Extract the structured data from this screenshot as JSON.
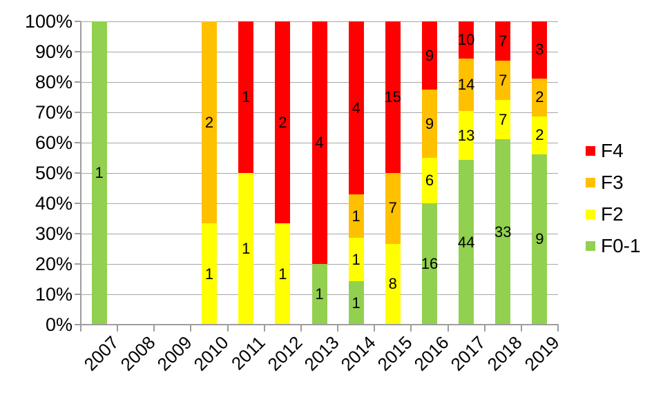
{
  "chart_data": {
    "type": "bar",
    "subtype": "stacked-100-percent",
    "title": "",
    "xlabel": "",
    "ylabel": "",
    "categories": [
      "2007",
      "2008",
      "2009",
      "2010",
      "2011",
      "2012",
      "2013",
      "2014",
      "2015",
      "2016",
      "2017",
      "2018",
      "2019"
    ],
    "series": [
      {
        "name": "F0-1",
        "color": "#92D050",
        "values": [
          1,
          0,
          0,
          0,
          0,
          0,
          1,
          1,
          0,
          16,
          44,
          33,
          9
        ]
      },
      {
        "name": "F2",
        "color": "#FFFF00",
        "values": [
          0,
          0,
          0,
          1,
          1,
          1,
          0,
          1,
          8,
          6,
          13,
          7,
          2
        ]
      },
      {
        "name": "F3",
        "color": "#FFC000",
        "values": [
          0,
          0,
          0,
          2,
          0,
          0,
          0,
          1,
          7,
          9,
          14,
          7,
          2
        ]
      },
      {
        "name": "F4",
        "color": "#FF0000",
        "values": [
          0,
          0,
          0,
          0,
          1,
          2,
          4,
          4,
          15,
          9,
          10,
          7,
          3
        ]
      }
    ],
    "y_axis": {
      "min": 0,
      "max": 100,
      "step": 10,
      "tick_labels": [
        "0%",
        "10%",
        "20%",
        "30%",
        "40%",
        "50%",
        "60%",
        "70%",
        "80%",
        "90%",
        "100%"
      ]
    },
    "grid": true,
    "legend_position": "right",
    "legend": [
      {
        "label": "F4",
        "color": "#FF0000"
      },
      {
        "label": "F3",
        "color": "#FFC000"
      },
      {
        "label": "F2",
        "color": "#FFFF00"
      },
      {
        "label": "F0-1",
        "color": "#92D050"
      }
    ],
    "colors": {
      "gridline": "#A6A6A6",
      "axis": "#9D9D9D",
      "text": "#000000",
      "background": "#FFFFFF"
    }
  }
}
